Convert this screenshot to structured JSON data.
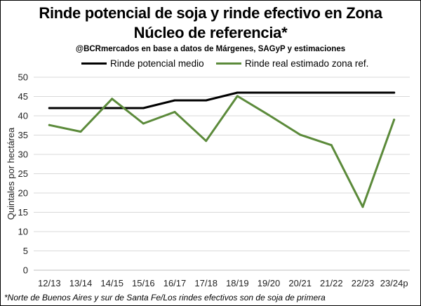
{
  "chart_data": {
    "type": "line",
    "title_line1": "Rinde potencial de soja y rinde efectivo en Zona",
    "title_line2": "Núcleo de referencia*",
    "subtitle": "@BCRmercados en base a datos de Márgenes, SAGyP y estimaciones",
    "xlabel": "",
    "ylabel": "Quintales por hectárea",
    "ylim": [
      0,
      50
    ],
    "yticks": [
      0,
      5,
      10,
      15,
      20,
      25,
      30,
      35,
      40,
      45,
      50
    ],
    "grid": true,
    "legend_position": "top",
    "categories": [
      "12/13",
      "13/14",
      "14/15",
      "15/16",
      "16/17",
      "17/18",
      "18/19",
      "19/20",
      "20/21",
      "21/22",
      "22/23",
      "23/24p"
    ],
    "series": [
      {
        "name": "Rinde potencial medio",
        "color": "#000000",
        "values": [
          42,
          42,
          42,
          42,
          44,
          44,
          46,
          46,
          46,
          46,
          46,
          46
        ]
      },
      {
        "name": "Rinde real estimado zona ref.",
        "color": "#5B8A3A",
        "values": [
          37.6,
          35.9,
          44.4,
          38,
          41,
          33.5,
          45.1,
          40.2,
          35.1,
          32.4,
          16.4,
          39
        ]
      }
    ],
    "footnote": "*Norte de Buenos Aires y sur de Santa Fe/Los rindes efectivos son de soja de primera"
  }
}
